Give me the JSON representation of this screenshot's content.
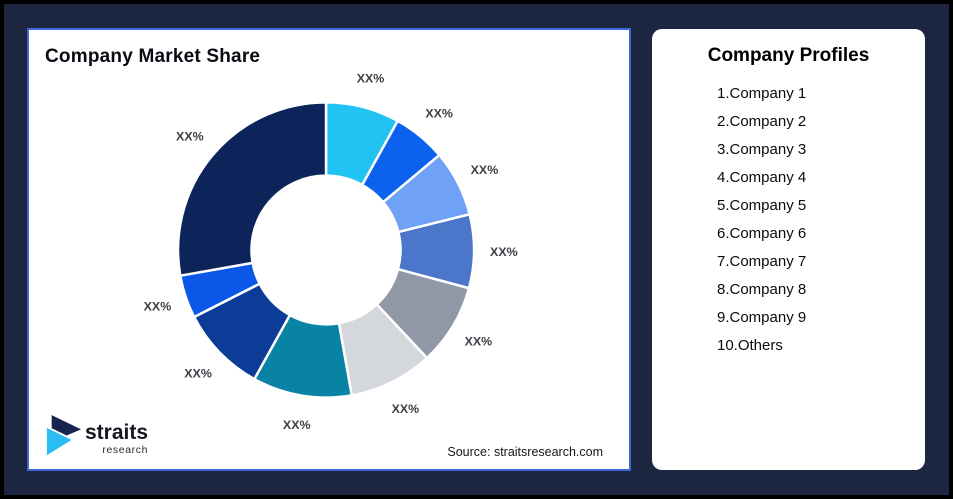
{
  "frame": {
    "background_color": "#1D2640",
    "border_color": "#000000"
  },
  "chart_card": {
    "title": "Company Market Share",
    "source": "Source: straitsresearch.com",
    "border_color": "#3E68D8"
  },
  "logo": {
    "brand": "straits",
    "sub_brand": "research",
    "mark_top_color": "#16234D",
    "mark_bottom_color": "#29BDF0"
  },
  "profiles_card": {
    "title": "Company Profiles",
    "items": [
      "1.Company 1",
      "2.Company 2",
      "3.Company 3",
      "4.Company 4",
      "5.Company 5",
      "6.Company 6",
      "7.Company 7",
      "8.Company 8",
      "9.Company 9",
      "10.Others"
    ]
  },
  "chart_data": {
    "type": "pie",
    "subtype": "donut",
    "title": "Company Market Share",
    "legend": "none",
    "values_masked": true,
    "label_color": "#3D4046",
    "segments": [
      {
        "name": "segment-1",
        "sweep_deg": 29,
        "label": "XX%",
        "color": "#21C3F3"
      },
      {
        "name": "segment-2",
        "sweep_deg": 21,
        "label": "XX%",
        "color": "#0B62EF"
      },
      {
        "name": "segment-3",
        "sweep_deg": 26,
        "label": "XX%",
        "color": "#6FA2F6"
      },
      {
        "name": "segment-4",
        "sweep_deg": 29,
        "label": "XX%",
        "color": "#4C76C9"
      },
      {
        "name": "segment-5",
        "sweep_deg": 32,
        "label": "XX%",
        "color": "#9097A7"
      },
      {
        "name": "segment-6",
        "sweep_deg": 33,
        "label": "XX%",
        "color": "#D4D7DC"
      },
      {
        "name": "segment-7",
        "sweep_deg": 39,
        "label": "XX%",
        "color": "#0983A4"
      },
      {
        "name": "segment-8",
        "sweep_deg": 34,
        "label": "XX%",
        "color": "#0D3C98"
      },
      {
        "name": "segment-9",
        "sweep_deg": 17,
        "label": "XX%",
        "color": "#0B57E7"
      },
      {
        "name": "segment-10",
        "sweep_deg": 100,
        "label": "XX%",
        "color": "#0C2459"
      }
    ]
  }
}
